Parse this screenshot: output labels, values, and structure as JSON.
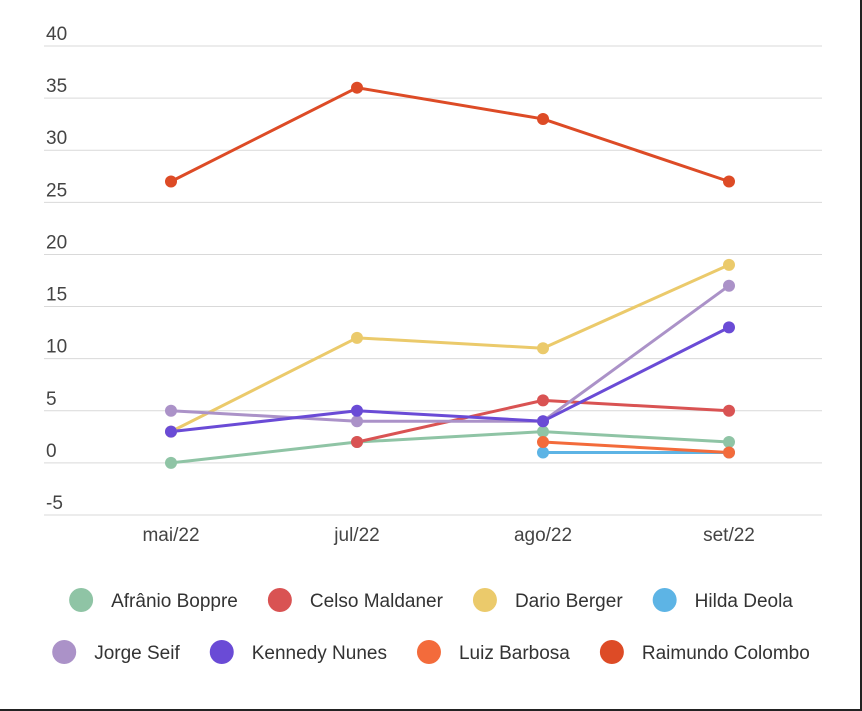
{
  "chart_data": {
    "type": "line",
    "title": "",
    "xlabel": "",
    "ylabel": "",
    "categories": [
      "mai/22",
      "jul/22",
      "ago/22",
      "set/22"
    ],
    "ylim": [
      -5,
      40
    ],
    "yticks": [
      "-5",
      "0",
      "5",
      "10",
      "15",
      "20",
      "25",
      "30",
      "35",
      "40"
    ],
    "grid": true,
    "legend_position": "bottom",
    "series": [
      {
        "name": "Afrânio Boppre",
        "color": "#8fc4a5",
        "values": [
          0,
          2,
          3,
          2
        ]
      },
      {
        "name": "Celso Maldaner",
        "color": "#d95353",
        "values": [
          null,
          2,
          6,
          5
        ]
      },
      {
        "name": "Dario Berger",
        "color": "#ebca6b",
        "values": [
          3,
          12,
          11,
          19
        ]
      },
      {
        "name": "Hilda Deola",
        "color": "#5db4e5",
        "values": [
          null,
          null,
          1,
          1
        ]
      },
      {
        "name": "Jorge Seif",
        "color": "#ab92c8",
        "values": [
          5,
          4,
          4,
          17
        ]
      },
      {
        "name": "Kennedy Nunes",
        "color": "#6a4bd6",
        "values": [
          3,
          5,
          4,
          13
        ]
      },
      {
        "name": "Luiz Barbosa",
        "color": "#f36b3b",
        "values": [
          null,
          null,
          2,
          1
        ]
      },
      {
        "name": "Raimundo Colombo",
        "color": "#dd4b26",
        "values": [
          27,
          36,
          33,
          27
        ]
      }
    ]
  }
}
